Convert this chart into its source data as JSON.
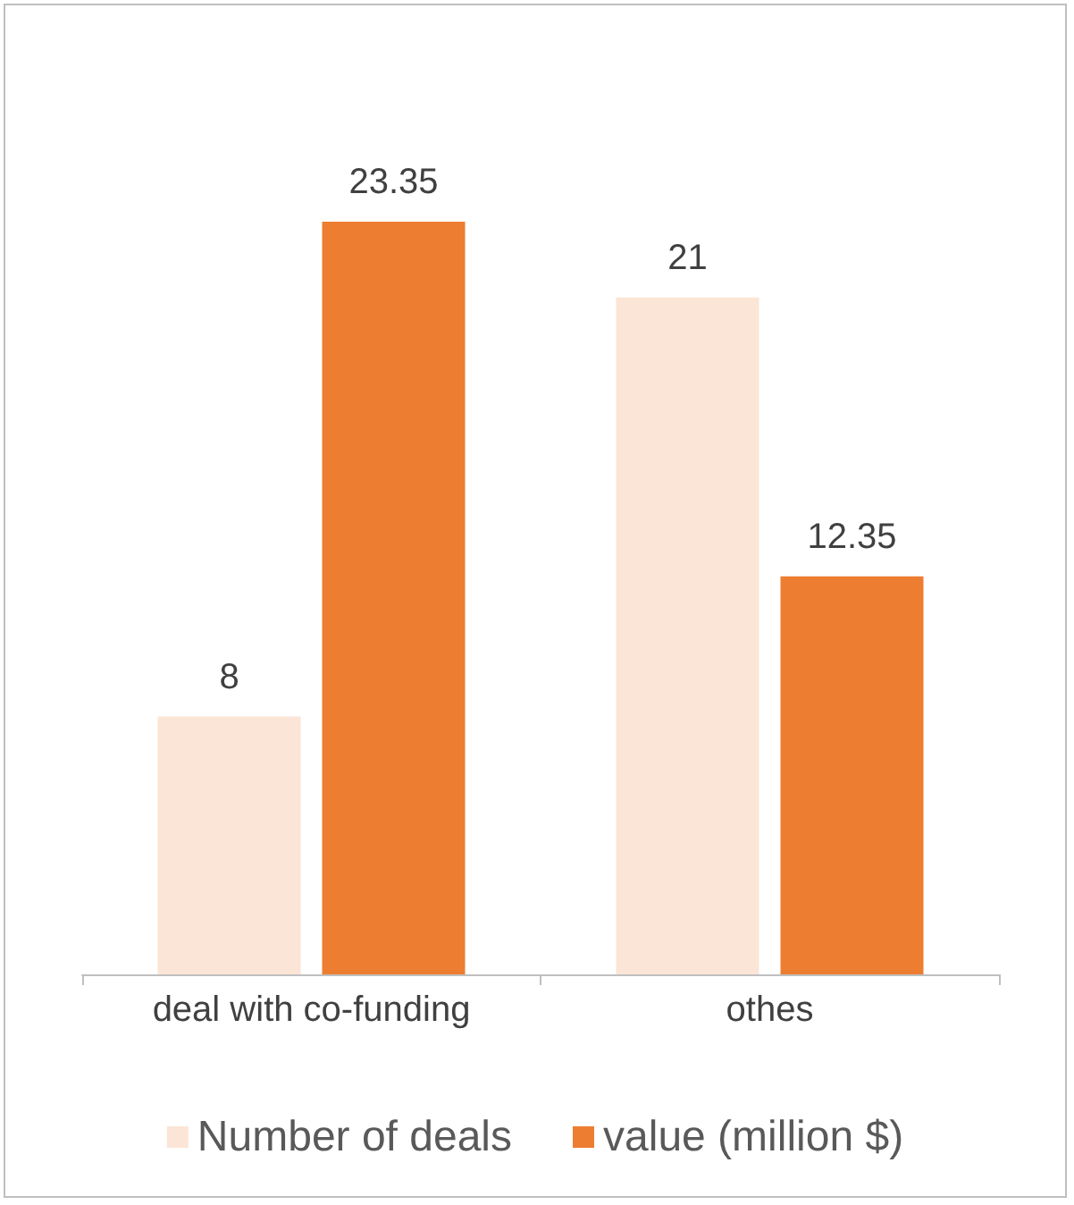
{
  "chart_data": {
    "type": "bar",
    "categories": [
      "deal with co-funding",
      "othes"
    ],
    "series": [
      {
        "name": "Number of deals",
        "color": "#fbe5d6",
        "values": [
          8,
          21
        ]
      },
      {
        "name": "value (million $)",
        "color": "#ed7d31",
        "values": [
          23.35,
          12.35
        ]
      }
    ],
    "data_labels": true,
    "legend": "bottom",
    "grid": false
  }
}
